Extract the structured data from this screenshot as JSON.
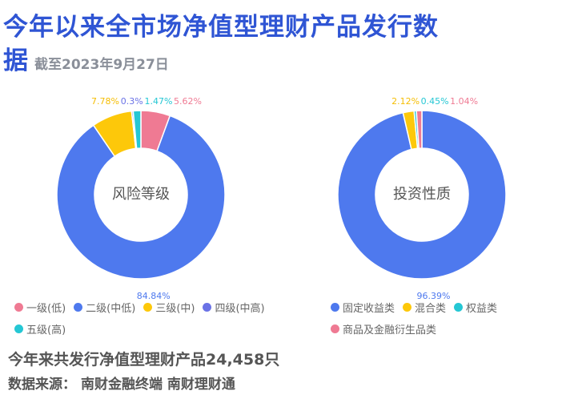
{
  "header": {
    "title_line1": "今年以来全市场净值型理财产品发行数",
    "title_line2": "据",
    "subtitle": "截至2023年9月27日"
  },
  "chart_data": [
    {
      "type": "pie",
      "center_label": "风险等级",
      "categories": [
        "一级(低)",
        "二级(中低)",
        "三级(中)",
        "四级(中高)",
        "五级(高)"
      ],
      "values": [
        5.62,
        84.84,
        7.78,
        0.3,
        1.47
      ],
      "value_labels": [
        "5.62%",
        "84.84%",
        "7.78%",
        "0.3%",
        "1.47%"
      ],
      "colors": [
        "#ef7a93",
        "#4e79ee",
        "#fdc80a",
        "#6a72e6",
        "#25c7d4"
      ],
      "label_colors": [
        "#ef7a93",
        "#4e79ee",
        "#f5be05",
        "#6a72e6",
        "#25c7d4"
      ],
      "legend_placement": "bottom"
    },
    {
      "type": "pie",
      "center_label": "投资性质",
      "categories": [
        "固定收益类",
        "混合类",
        "权益类",
        "商品及金融衍生品类"
      ],
      "values": [
        96.39,
        2.12,
        0.45,
        1.04
      ],
      "value_labels": [
        "96.39%",
        "2.12%",
        "0.45%",
        "1.04%"
      ],
      "colors": [
        "#4e79ee",
        "#fdc80a",
        "#25c7d4",
        "#ef7a93"
      ],
      "label_colors": [
        "#4e79ee",
        "#f5be05",
        "#25c7d4",
        "#ef7a93"
      ],
      "legend_placement": "bottom"
    }
  ],
  "footer": {
    "summary": "今年来共发行净值型理财产品24,458只",
    "source_label": "数据来源：",
    "source_value": "南财金融终端 南财理财通"
  }
}
